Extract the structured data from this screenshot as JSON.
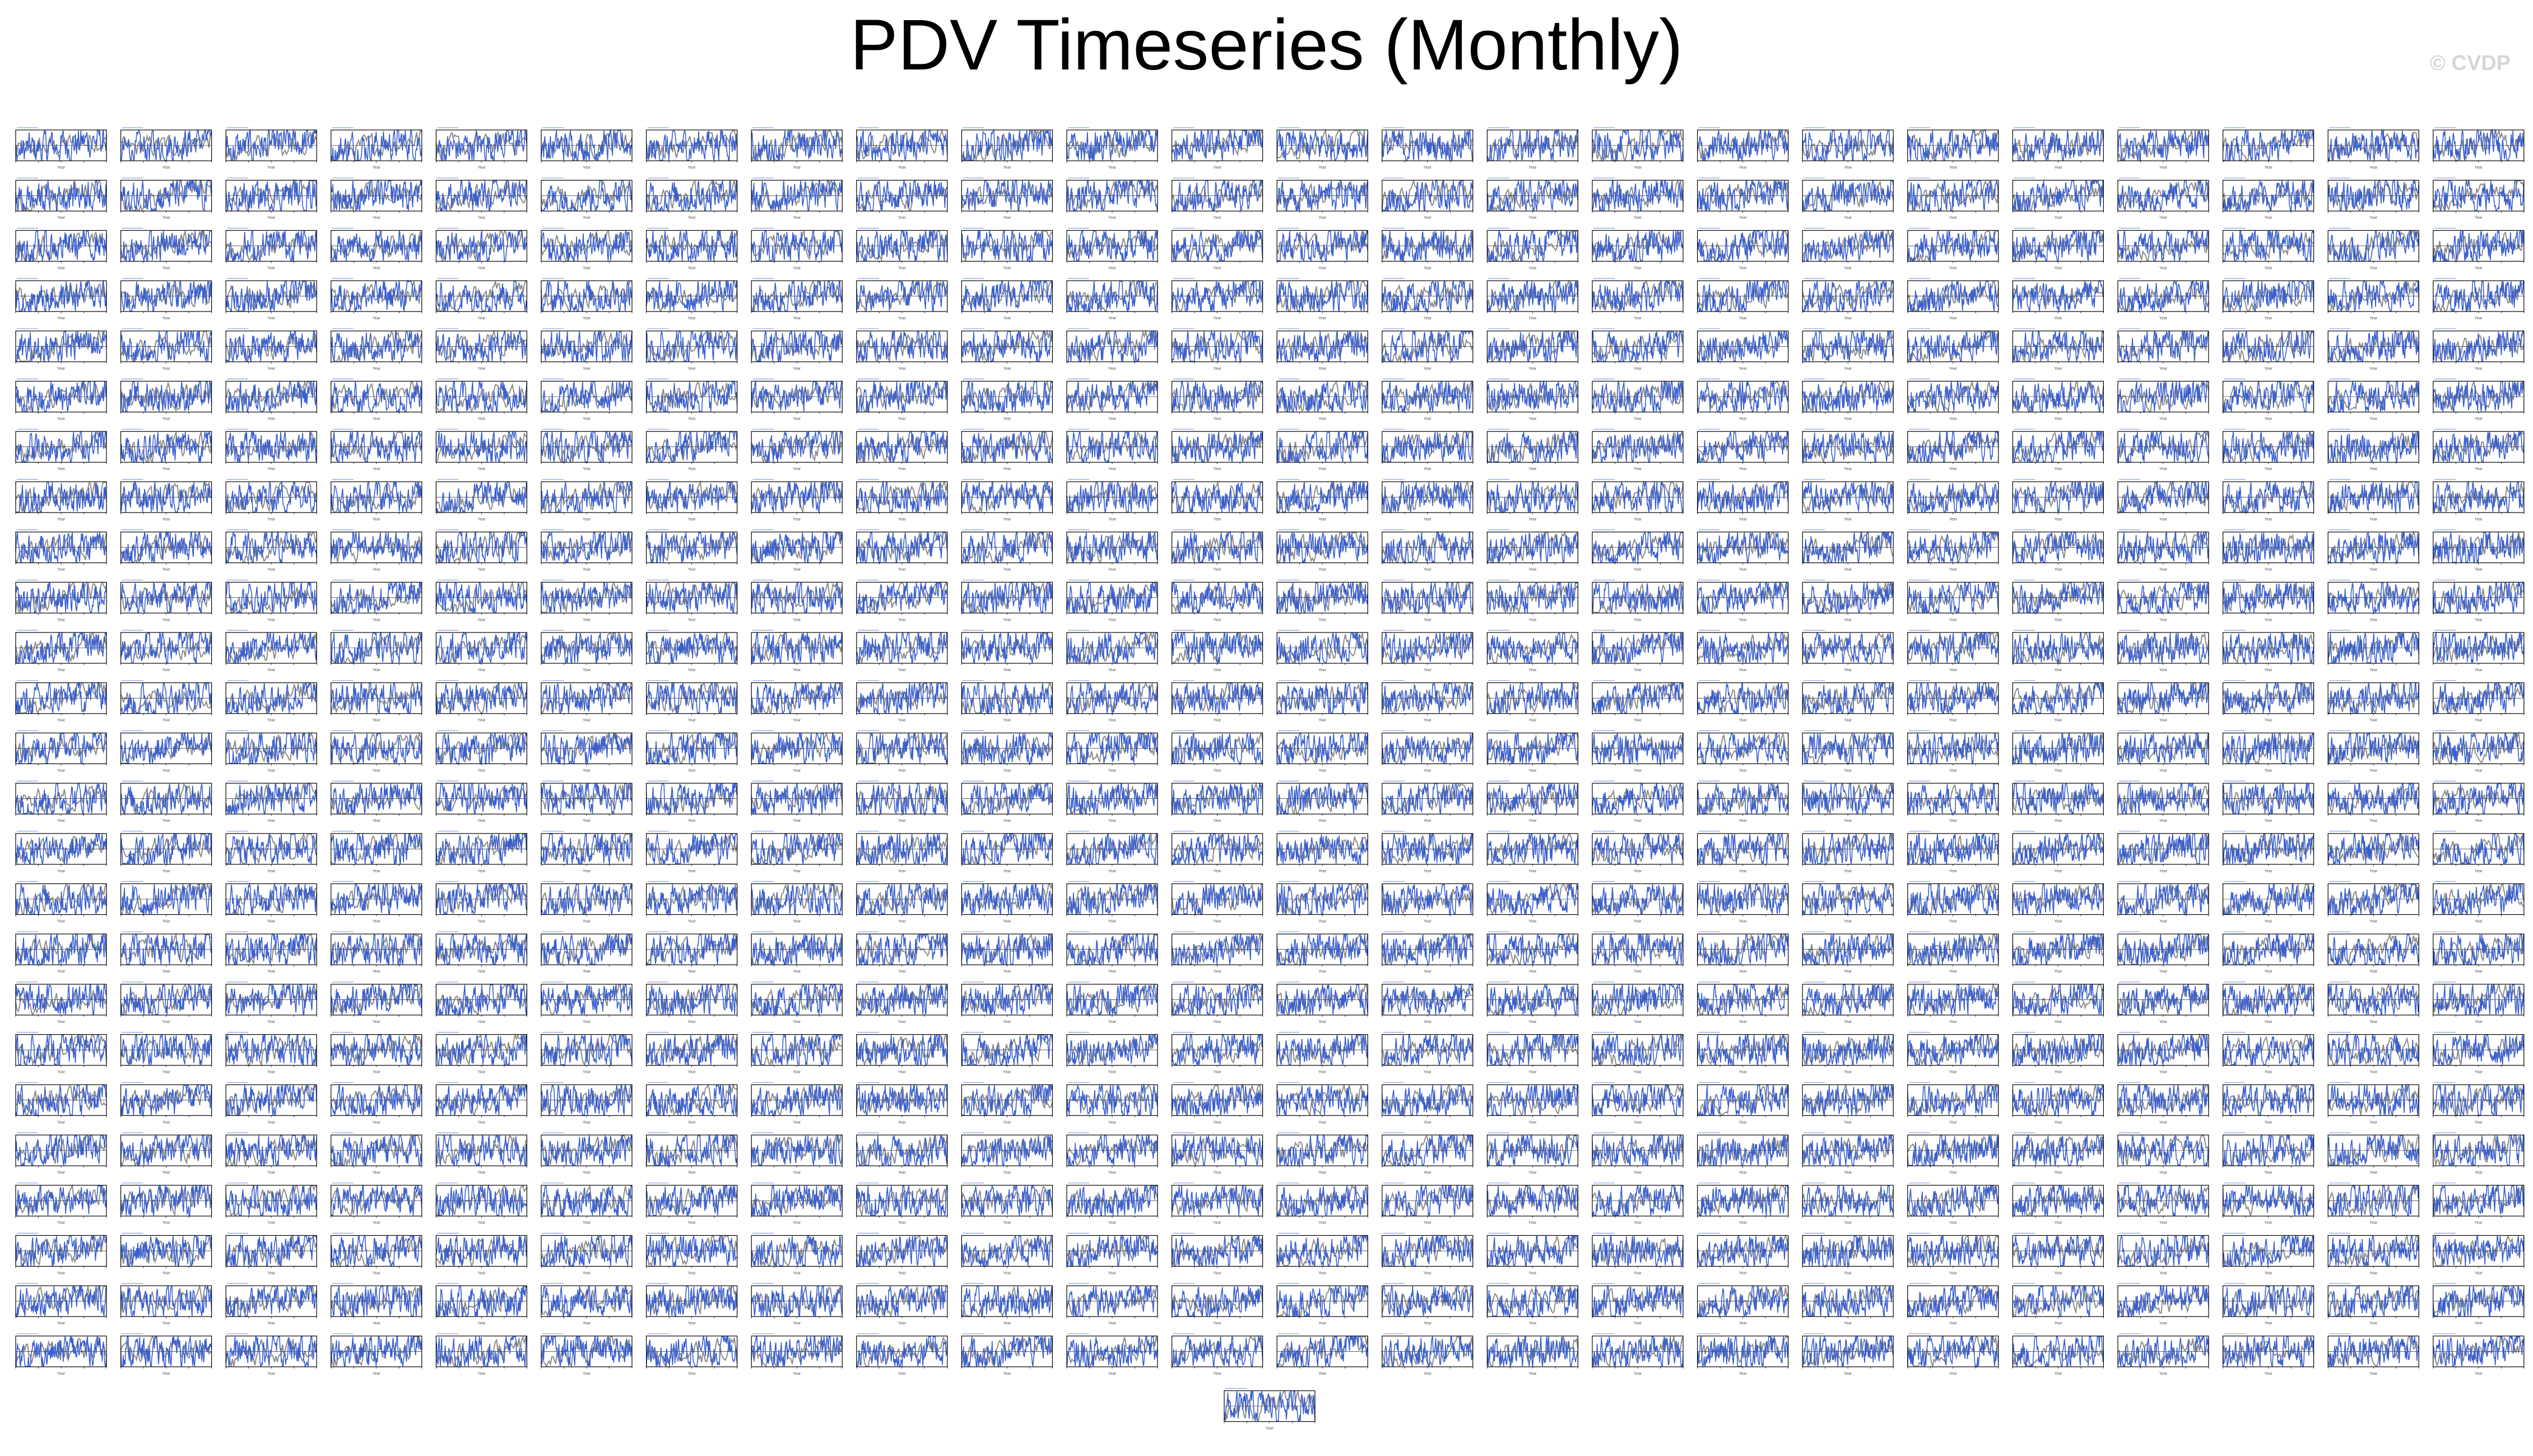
{
  "figure": {
    "title": "PDV Timeseries (Monthly)",
    "watermark": "© CVDP"
  },
  "chart_data": {
    "type": "line",
    "grid": {
      "rows": 25,
      "columns": 24,
      "extra_bottom_panels": 1,
      "total_panels": 601
    },
    "panel_template": {
      "xlabel": "Year",
      "series": [
        {
          "role": "ensemble spread",
          "color": "#8c8c8c"
        },
        {
          "role": "timeseries",
          "color": "#3a5fcd"
        }
      ],
      "zero_line_color": "#000000"
    },
    "colors": {
      "series_main": "#3a5fcd",
      "series_spread": "#8c8c8c",
      "axis": "#000000",
      "watermark": "#d6d6d6"
    }
  }
}
